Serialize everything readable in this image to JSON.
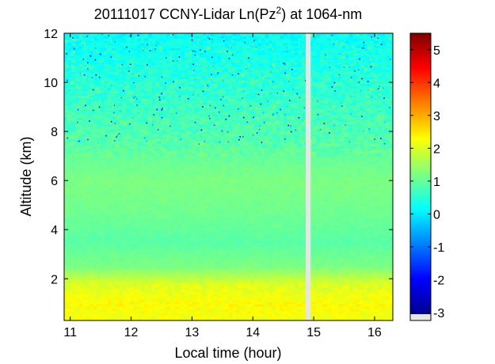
{
  "chart_data": {
    "type": "heatmap",
    "title_main": "20111017 CCNY-Lidar Ln(Pz",
    "title_sup": "2",
    "title_tail": ") at 1064-nm",
    "xlabel": "Local time (hour)",
    "ylabel": "Altitude (km)",
    "xlim": [
      10.9,
      16.3
    ],
    "ylim": [
      0.3,
      12
    ],
    "xticks": [
      11,
      12,
      13,
      14,
      15,
      16
    ],
    "yticks": [
      2,
      4,
      6,
      8,
      10,
      12
    ],
    "colorbar": {
      "min": -3.05,
      "max": 5.5,
      "ticks": [
        5,
        4,
        3,
        2,
        1,
        0,
        -1,
        -2,
        -3
      ],
      "colormap": "jet",
      "no_data_color": "#e6e6e6"
    },
    "data_gap": {
      "x_start": 14.87,
      "x_end": 14.95,
      "color": "#e6e6e6"
    },
    "profile": [
      {
        "altitude_km": 0.5,
        "value": 2.2
      },
      {
        "altitude_km": 1.0,
        "value": 2.3
      },
      {
        "altitude_km": 1.8,
        "value": 2.0
      },
      {
        "altitude_km": 2.5,
        "value": 1.2
      },
      {
        "altitude_km": 3.5,
        "value": 0.9
      },
      {
        "altitude_km": 4.8,
        "value": 1.1
      },
      {
        "altitude_km": 6.0,
        "value": 1.2
      },
      {
        "altitude_km": 8.0,
        "value": 0.8
      },
      {
        "altitude_km": 10.0,
        "value": 0.5
      },
      {
        "altitude_km": 12.0,
        "value": 0.2
      }
    ]
  }
}
